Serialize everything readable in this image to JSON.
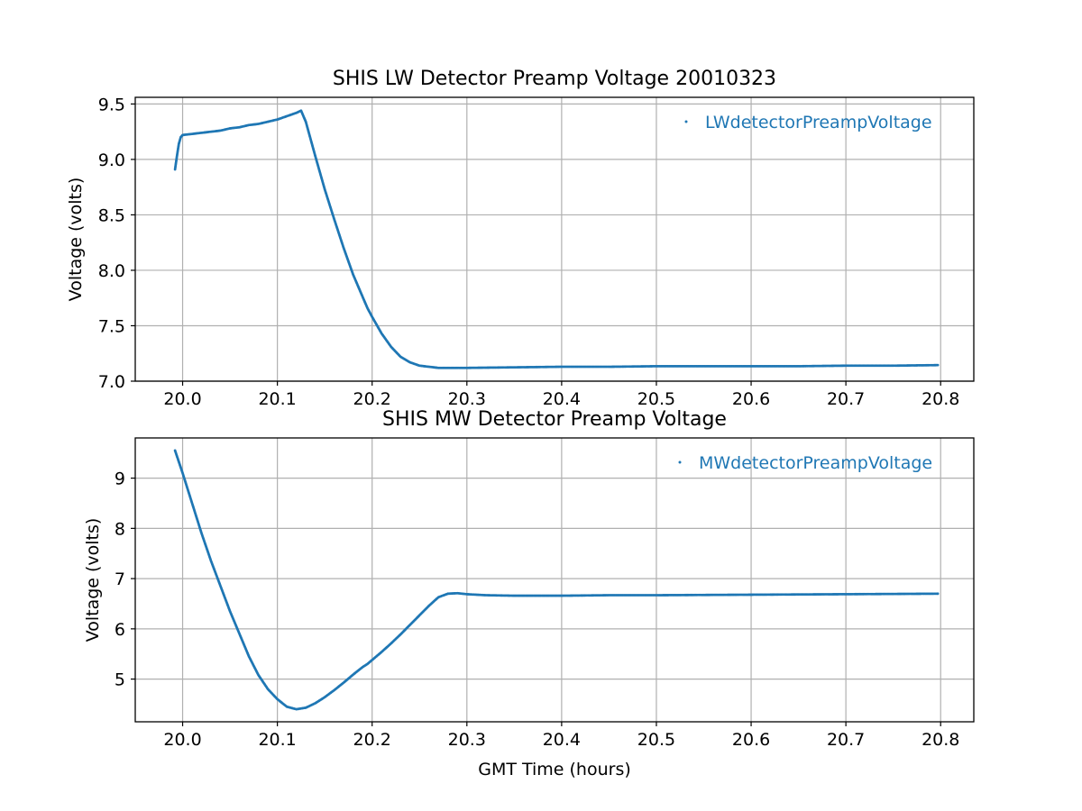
{
  "chart_data": [
    {
      "type": "scatter",
      "title": "SHIS LW Detector Preamp Voltage 20010323",
      "xlabel": "",
      "ylabel": "Voltage (volts)",
      "xlim": [
        19.95,
        20.835
      ],
      "ylim": [
        7.0,
        9.56
      ],
      "xticks": [
        "20.0",
        "20.1",
        "20.2",
        "20.3",
        "20.4",
        "20.5",
        "20.6",
        "20.7",
        "20.8"
      ],
      "yticks": [
        "7.0",
        "7.5",
        "8.0",
        "8.5",
        "9.0",
        "9.5"
      ],
      "grid": true,
      "legend_position": "top-right",
      "series": [
        {
          "name": "LWdetectorPreampVoltage",
          "color": "#1f77b4",
          "marker": "point",
          "x": [
            19.992,
            19.994,
            19.996,
            19.998,
            20.0,
            20.01,
            20.02,
            20.03,
            20.04,
            20.05,
            20.06,
            20.07,
            20.08,
            20.09,
            20.1,
            20.11,
            20.12,
            20.125,
            20.13,
            20.14,
            20.15,
            20.16,
            20.17,
            20.18,
            20.19,
            20.195,
            20.2,
            20.21,
            20.22,
            20.23,
            20.24,
            20.25,
            20.26,
            20.27,
            20.3,
            20.35,
            20.4,
            20.45,
            20.5,
            20.55,
            20.6,
            20.65,
            20.7,
            20.75,
            20.797
          ],
          "y": [
            8.91,
            9.03,
            9.14,
            9.2,
            9.22,
            9.23,
            9.24,
            9.25,
            9.26,
            9.28,
            9.29,
            9.31,
            9.32,
            9.34,
            9.36,
            9.39,
            9.42,
            9.44,
            9.34,
            9.03,
            8.73,
            8.46,
            8.2,
            7.96,
            7.76,
            7.66,
            7.58,
            7.43,
            7.31,
            7.22,
            7.17,
            7.14,
            7.13,
            7.12,
            7.12,
            7.125,
            7.13,
            7.13,
            7.135,
            7.135,
            7.135,
            7.135,
            7.14,
            7.14,
            7.145
          ]
        }
      ]
    },
    {
      "type": "scatter",
      "title": "SHIS MW Detector Preamp Voltage",
      "xlabel": "GMT Time (hours)",
      "ylabel": "Voltage (volts)",
      "xlim": [
        19.95,
        20.835
      ],
      "ylim": [
        4.15,
        9.8
      ],
      "xticks": [
        "20.0",
        "20.1",
        "20.2",
        "20.3",
        "20.4",
        "20.5",
        "20.6",
        "20.7",
        "20.8"
      ],
      "yticks": [
        "5",
        "6",
        "7",
        "8",
        "9"
      ],
      "grid": true,
      "legend_position": "top-right",
      "series": [
        {
          "name": "MWdetectorPreampVoltage",
          "color": "#1f77b4",
          "marker": "point",
          "x": [
            19.992,
            20.0,
            20.01,
            20.02,
            20.03,
            20.04,
            20.05,
            20.06,
            20.07,
            20.08,
            20.09,
            20.1,
            20.11,
            20.12,
            20.13,
            20.14,
            20.15,
            20.16,
            20.17,
            20.18,
            20.19,
            20.195,
            20.2,
            20.21,
            20.22,
            20.23,
            20.24,
            20.25,
            20.26,
            20.27,
            20.28,
            20.29,
            20.3,
            20.32,
            20.35,
            20.4,
            20.45,
            20.5,
            20.55,
            20.6,
            20.65,
            20.7,
            20.75,
            20.797
          ],
          "y": [
            9.55,
            9.1,
            8.5,
            7.9,
            7.35,
            6.85,
            6.35,
            5.9,
            5.45,
            5.08,
            4.8,
            4.6,
            4.45,
            4.4,
            4.43,
            4.52,
            4.64,
            4.78,
            4.93,
            5.09,
            5.24,
            5.3,
            5.38,
            5.54,
            5.71,
            5.89,
            6.08,
            6.27,
            6.46,
            6.63,
            6.7,
            6.71,
            6.69,
            6.67,
            6.66,
            6.66,
            6.67,
            6.67,
            6.675,
            6.68,
            6.685,
            6.69,
            6.695,
            6.7
          ]
        }
      ]
    }
  ]
}
